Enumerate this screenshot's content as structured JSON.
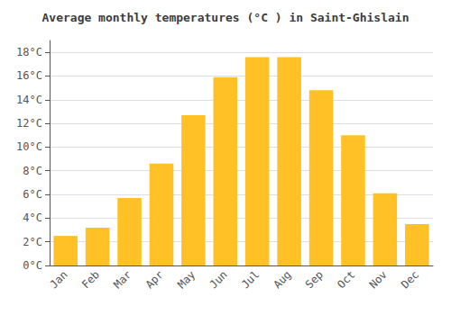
{
  "chart_data": {
    "type": "bar",
    "title": "Average monthly temperatures (°C ) in Saint-Ghislain",
    "categories": [
      "Jan",
      "Feb",
      "Mar",
      "Apr",
      "May",
      "Jun",
      "Jul",
      "Aug",
      "Sep",
      "Oct",
      "Nov",
      "Dec"
    ],
    "values": [
      2.5,
      3.2,
      5.7,
      8.6,
      12.7,
      15.9,
      17.6,
      17.6,
      14.8,
      11.0,
      6.1,
      3.5
    ],
    "color": "#FFC125",
    "ylim": [
      0,
      19.0
    ],
    "yticks": [
      {
        "value": 0,
        "label": "0°C"
      },
      {
        "value": 2,
        "label": "2°C"
      },
      {
        "value": 4,
        "label": "4°C"
      },
      {
        "value": 6,
        "label": "6°C"
      },
      {
        "value": 8,
        "label": "8°C"
      },
      {
        "value": 10,
        "label": "10°C"
      },
      {
        "value": 12,
        "label": "12°C"
      },
      {
        "value": 14,
        "label": "14°C"
      },
      {
        "value": 16,
        "label": "16°C"
      },
      {
        "value": 18,
        "label": "18°C"
      }
    ],
    "grid": true
  }
}
